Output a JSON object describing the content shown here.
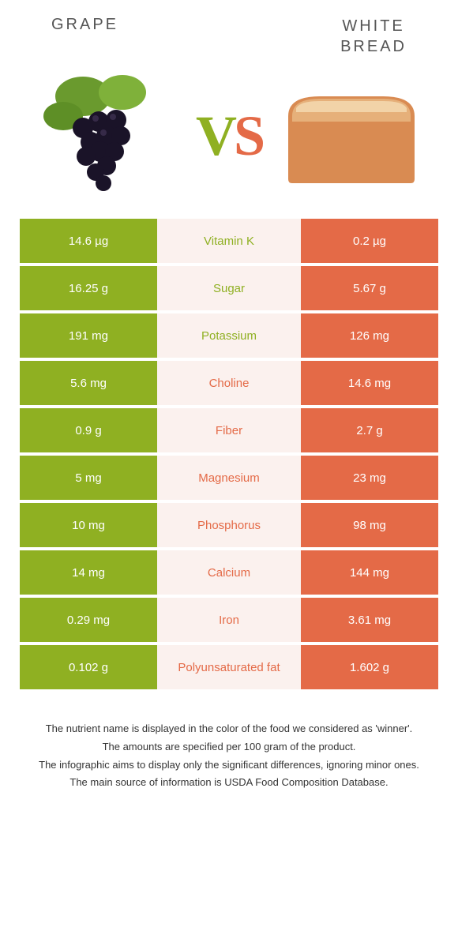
{
  "header": {
    "left_title": "GRAPE",
    "right_title_line1": "WHITE",
    "right_title_line2": "BREAD"
  },
  "vs": {
    "v": "V",
    "s": "S"
  },
  "colors": {
    "grape": "#8fb022",
    "bread": "#e46a47",
    "mid_bg": "#fbf1ee",
    "text": "#ffffff"
  },
  "nutrients": [
    {
      "name": "Vitamin K",
      "left": "14.6 µg",
      "right": "0.2 µg",
      "winner": "grape"
    },
    {
      "name": "Sugar",
      "left": "16.25 g",
      "right": "5.67 g",
      "winner": "grape"
    },
    {
      "name": "Potassium",
      "left": "191 mg",
      "right": "126 mg",
      "winner": "grape"
    },
    {
      "name": "Choline",
      "left": "5.6 mg",
      "right": "14.6 mg",
      "winner": "bread"
    },
    {
      "name": "Fiber",
      "left": "0.9 g",
      "right": "2.7 g",
      "winner": "bread"
    },
    {
      "name": "Magnesium",
      "left": "5 mg",
      "right": "23 mg",
      "winner": "bread"
    },
    {
      "name": "Phosphorus",
      "left": "10 mg",
      "right": "98 mg",
      "winner": "bread"
    },
    {
      "name": "Calcium",
      "left": "14 mg",
      "right": "144 mg",
      "winner": "bread"
    },
    {
      "name": "Iron",
      "left": "0.29 mg",
      "right": "3.61 mg",
      "winner": "bread"
    },
    {
      "name": "Polyunsaturated fat",
      "left": "0.102 g",
      "right": "1.602 g",
      "winner": "bread"
    }
  ],
  "footnotes": [
    "The nutrient name is displayed in the color of the food we considered as 'winner'.",
    "The amounts are specified per 100 gram of the product.",
    "The infographic aims to display only the significant differences, ignoring minor ones.",
    "The main source of information is USDA Food Composition Database."
  ]
}
